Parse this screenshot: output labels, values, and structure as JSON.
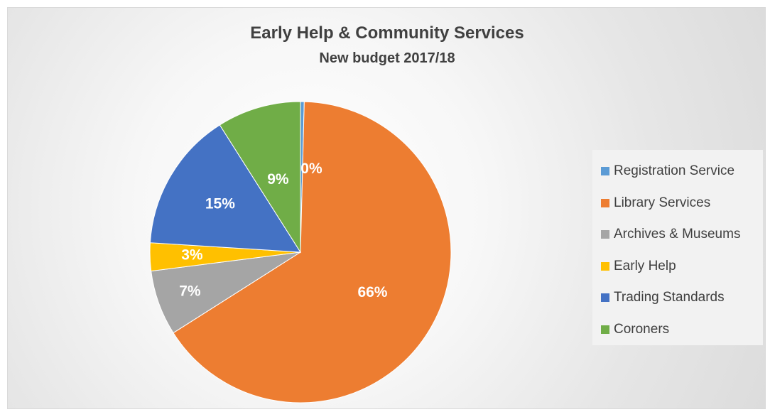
{
  "chart_data": {
    "type": "pie",
    "title": "Early Help & Community Services",
    "subtitle": "New budget 2017/18",
    "categories": [
      "Registration Service",
      "Library Services",
      "Archives & Museums",
      "Early Help",
      "Trading Standards",
      "Coroners"
    ],
    "values": [
      0.4,
      65.6,
      7.0,
      3.0,
      15.0,
      9.0
    ],
    "data_labels": [
      "0%",
      "66%",
      "7%",
      "3%",
      "15%",
      "9%"
    ],
    "colors": [
      "#5b9bd5",
      "#ed7d31",
      "#a5a5a5",
      "#ffc000",
      "#4472c4",
      "#70ad47"
    ],
    "start_angle": 0,
    "direction": "clockwise",
    "legend_position": "right"
  }
}
